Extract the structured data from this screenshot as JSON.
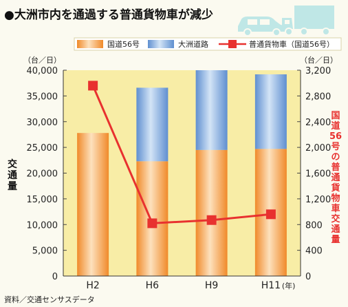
{
  "chart_data": {
    "type": "bar",
    "title": "●大洲市内を通過する普通貨物車が減少",
    "categories": [
      "H2",
      "H6",
      "H9",
      "H11"
    ],
    "x_unit": "(年)",
    "stacked": true,
    "series": [
      {
        "name": "国道56号",
        "axis": "left",
        "type": "bar",
        "color": "#f5a957",
        "values": [
          27800,
          22300,
          24500,
          24700
        ]
      },
      {
        "name": "大洲道路",
        "axis": "left",
        "type": "bar",
        "color": "#7aa6d8",
        "values": [
          0,
          14300,
          15500,
          14500
        ]
      },
      {
        "name": "普通貨物車（国道56号）",
        "axis": "right",
        "type": "line",
        "color": "#e8312f",
        "values": [
          2960,
          820,
          870,
          960
        ]
      }
    ],
    "y_left": {
      "label": "交通量",
      "unit": "（台／日）",
      "ticks": [
        "0",
        "5,000",
        "10,000",
        "15,000",
        "20,000",
        "25,000",
        "30,000",
        "35,000",
        "40,000"
      ],
      "range": [
        0,
        40000
      ]
    },
    "y_right": {
      "label": "国道56号の普通貨物車交通量",
      "unit": "（台／日）",
      "ticks": [
        "0",
        "400",
        "800",
        "1,200",
        "1,600",
        "2,000",
        "2,400",
        "2,800",
        "3,200"
      ],
      "range": [
        0,
        3200
      ]
    },
    "legend_position": "top",
    "grid": false,
    "source": "資料／交通センサスデータ",
    "accent_color": "#e8312f"
  }
}
